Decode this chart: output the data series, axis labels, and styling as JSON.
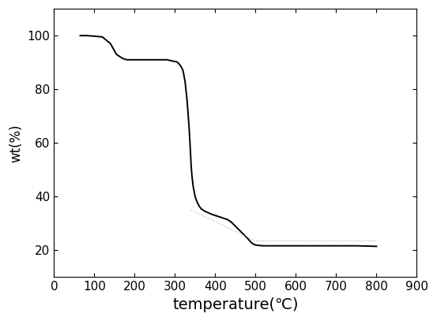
{
  "title": "",
  "xlabel": "temperature(℃)",
  "ylabel": "wt(%)",
  "xlim": [
    0,
    900
  ],
  "ylim": [
    10,
    110
  ],
  "xticks": [
    0,
    100,
    200,
    300,
    400,
    500,
    600,
    700,
    800,
    900
  ],
  "yticks": [
    20,
    40,
    60,
    80,
    100
  ],
  "line_color": "#000000",
  "line_color2": "#cccccc",
  "line_width": 1.4,
  "background_color": "#ffffff",
  "xlabel_fontsize": 14,
  "ylabel_fontsize": 12,
  "tick_fontsize": 11,
  "curve_x": [
    65,
    80,
    100,
    120,
    140,
    155,
    170,
    180,
    190,
    200,
    220,
    240,
    260,
    280,
    295,
    305,
    310,
    315,
    320,
    325,
    330,
    335,
    338,
    340,
    342,
    345,
    350,
    355,
    360,
    365,
    370,
    375,
    380,
    390,
    400,
    410,
    420,
    430,
    440,
    450,
    460,
    470,
    480,
    490,
    495,
    500,
    510,
    520,
    550,
    600,
    650,
    700,
    750,
    800
  ],
  "curve_y": [
    100,
    100,
    99.8,
    99.5,
    97,
    93,
    91.5,
    91,
    91,
    91,
    91,
    91,
    91,
    91,
    90.5,
    90.2,
    89.5,
    88.5,
    87,
    83,
    76,
    66,
    58,
    52,
    48,
    44,
    40,
    38,
    36.5,
    35.5,
    35,
    34.5,
    34.2,
    33.5,
    33,
    32.5,
    32,
    31.5,
    30.5,
    29,
    27.5,
    26,
    24.5,
    22.8,
    22.3,
    22.0,
    21.8,
    21.7,
    21.7,
    21.7,
    21.7,
    21.7,
    21.7,
    21.5
  ],
  "curve2_x": [
    340,
    500,
    800
  ],
  "curve2_y": [
    35,
    23.5,
    23.5
  ]
}
